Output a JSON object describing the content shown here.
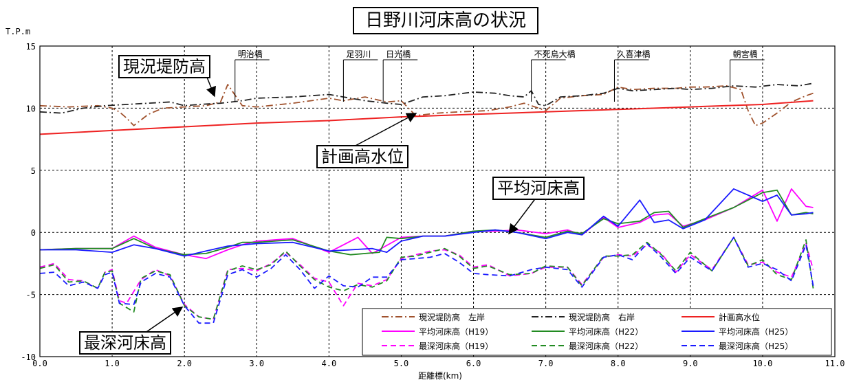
{
  "chart_data": {
    "type": "line",
    "title": "日野川河床高の状況",
    "xlabel": "距離標(km)",
    "ylabel": "T.P.m",
    "xlim": [
      0,
      11
    ],
    "ylim": [
      -10,
      15
    ],
    "xticks": [
      "0.0",
      "1.0",
      "2.0",
      "3.0",
      "4.0",
      "5.0",
      "6.0",
      "7.0",
      "8.0",
      "9.0",
      "10.0",
      "11.0"
    ],
    "yticks": [
      "15",
      "10",
      "5",
      "0",
      "-5",
      "-10"
    ],
    "grid": true,
    "legend_position": "bottom-right",
    "bridges": [
      {
        "name": "明治橋",
        "x": 2.7
      },
      {
        "name": "足羽川",
        "x": 4.2
      },
      {
        "name": "日光橋",
        "x": 4.75
      },
      {
        "name": "不死鳥大橋",
        "x": 6.8
      },
      {
        "name": "久喜津橋",
        "x": 7.95
      },
      {
        "name": "朝宮橋",
        "x": 9.55
      }
    ],
    "annotations": [
      {
        "text": "現況堤防高"
      },
      {
        "text": "計画高水位"
      },
      {
        "text": "平均河床高"
      },
      {
        "text": "最深河床高"
      }
    ],
    "series": [
      {
        "name": "現況堤防高　左岸",
        "color": "#a0522d",
        "dash": "dashdot",
        "x": [
          0,
          0.4,
          0.8,
          1.0,
          1.1,
          1.2,
          1.3,
          1.5,
          1.7,
          2.0,
          2.3,
          2.5,
          2.6,
          2.8,
          3.0,
          3.5,
          4.0,
          4.2,
          4.5,
          4.8,
          5.0,
          5.2,
          5.5,
          5.8,
          6.2,
          6.5,
          6.7,
          7.0,
          7.2,
          7.5,
          7.8,
          8.0,
          8.2,
          8.5,
          8.8,
          9.0,
          9.2,
          9.5,
          9.7,
          9.8,
          9.9,
          10.0,
          10.2,
          10.4,
          10.6,
          10.7
        ],
        "y": [
          10.2,
          10.1,
          10.2,
          10.0,
          9.7,
          9.2,
          8.6,
          9.5,
          10.0,
          10.1,
          10.2,
          10.5,
          11.9,
          10.2,
          10.1,
          10.4,
          10.8,
          10.6,
          10.9,
          10.5,
          10.6,
          9.4,
          9.6,
          9.7,
          9.8,
          10.1,
          10.4,
          9.8,
          10.8,
          11.0,
          11.1,
          11.7,
          11.5,
          11.6,
          11.6,
          11.7,
          11.7,
          11.8,
          11.5,
          9.8,
          8.6,
          8.8,
          9.6,
          10.5,
          11.0,
          11.2
        ]
      },
      {
        "name": "現況堤防高　右岸",
        "color": "#222222",
        "dash": "dashdot",
        "x": [
          0,
          0.3,
          0.6,
          0.9,
          1.2,
          1.5,
          1.8,
          2.0,
          2.2,
          2.5,
          2.8,
          3.0,
          3.5,
          4.0,
          4.2,
          4.5,
          4.8,
          5.0,
          5.3,
          5.6,
          6.0,
          6.3,
          6.5,
          6.7,
          6.8,
          6.9,
          7.0,
          7.2,
          7.5,
          7.8,
          8.0,
          8.2,
          8.5,
          8.8,
          9.0,
          9.3,
          9.6,
          9.9,
          10.2,
          10.5,
          10.7
        ],
        "y": [
          9.7,
          9.6,
          10.0,
          10.2,
          10.3,
          10.4,
          10.5,
          10.2,
          10.3,
          10.4,
          10.6,
          10.8,
          10.9,
          11.1,
          10.9,
          10.6,
          10.4,
          10.3,
          10.9,
          11.0,
          11.3,
          11.2,
          11.0,
          10.9,
          11.4,
          10.3,
          10.2,
          10.9,
          11.0,
          11.2,
          11.6,
          11.4,
          11.5,
          11.6,
          11.5,
          11.6,
          11.8,
          11.7,
          11.9,
          11.8,
          12.0
        ]
      },
      {
        "name": "計画高水位",
        "color": "#ee2222",
        "dash": "solid",
        "x": [
          0,
          1,
          2,
          3,
          4,
          5,
          6,
          7,
          8,
          9,
          10,
          10.7
        ],
        "y": [
          7.9,
          8.2,
          8.5,
          8.8,
          9.0,
          9.3,
          9.5,
          9.7,
          9.9,
          10.1,
          10.3,
          10.6
        ]
      },
      {
        "name": "平均河床高（H19）",
        "color": "#ff00ff",
        "dash": "solid",
        "x": [
          0,
          0.5,
          1.0,
          1.3,
          1.6,
          2.0,
          2.3,
          2.6,
          2.8,
          3.0,
          3.5,
          4.0,
          4.2,
          4.4,
          4.6,
          5.0,
          5.3,
          5.6,
          6.0,
          6.3,
          6.6,
          7.0,
          7.3,
          7.5,
          7.8,
          8.0,
          8.3,
          8.5,
          8.7,
          8.9,
          9.2,
          9.6,
          10.0,
          10.2,
          10.4,
          10.6,
          10.7
        ],
        "y": [
          -1.4,
          -1.3,
          -1.3,
          -0.3,
          -1.2,
          -1.8,
          -2.1,
          -1.4,
          -1.0,
          -0.7,
          -0.5,
          -1.6,
          -1.0,
          -0.4,
          -1.7,
          -0.4,
          -0.3,
          -0.3,
          0.1,
          0.1,
          0.2,
          -0.1,
          0.2,
          -0.2,
          1.2,
          0.4,
          0.8,
          1.4,
          1.5,
          0.5,
          1.0,
          2.0,
          3.4,
          0.9,
          3.5,
          2.1,
          2.0
        ]
      },
      {
        "name": "平均河床高（H22）",
        "color": "#228b22",
        "dash": "solid",
        "x": [
          0,
          0.5,
          1.0,
          1.3,
          1.6,
          2.0,
          2.3,
          2.6,
          2.8,
          3.0,
          3.5,
          4.0,
          4.3,
          4.7,
          4.8,
          5.0,
          5.3,
          5.6,
          6.0,
          6.3,
          6.6,
          7.0,
          7.3,
          7.5,
          7.8,
          8.0,
          8.3,
          8.5,
          8.7,
          8.9,
          9.2,
          9.6,
          10.0,
          10.2,
          10.4,
          10.6,
          10.7
        ],
        "y": [
          -1.4,
          -1.3,
          -1.3,
          -0.5,
          -1.3,
          -1.8,
          -1.7,
          -1.2,
          -0.8,
          -0.8,
          -0.6,
          -1.5,
          -1.8,
          -1.6,
          -0.4,
          -0.5,
          -0.3,
          -0.3,
          0.1,
          0.2,
          0.0,
          -0.4,
          0.1,
          -0.1,
          1.1,
          0.7,
          0.9,
          1.6,
          1.7,
          0.4,
          1.1,
          2.0,
          3.2,
          3.4,
          1.4,
          1.6,
          1.5
        ]
      },
      {
        "name": "平均河床高（H25）",
        "color": "#1a1aff",
        "dash": "solid",
        "x": [
          0,
          0.5,
          1.0,
          1.3,
          1.6,
          2.0,
          2.3,
          2.6,
          2.8,
          3.0,
          3.5,
          4.0,
          4.3,
          4.6,
          4.8,
          5.0,
          5.3,
          5.6,
          6.0,
          6.3,
          6.6,
          7.0,
          7.3,
          7.5,
          7.8,
          8.0,
          8.3,
          8.5,
          8.7,
          8.9,
          9.2,
          9.6,
          10.0,
          10.2,
          10.4,
          10.6,
          10.7
        ],
        "y": [
          -1.4,
          -1.4,
          -1.6,
          -1.0,
          -1.3,
          -1.9,
          -1.5,
          -1.1,
          -1.0,
          -0.9,
          -0.8,
          -1.5,
          -1.4,
          -1.3,
          -1.6,
          -0.7,
          -0.3,
          -0.3,
          0.0,
          0.2,
          0.0,
          -0.5,
          0.0,
          -0.2,
          1.3,
          0.5,
          2.6,
          0.8,
          1.0,
          0.3,
          1.0,
          3.5,
          2.5,
          3.0,
          1.4,
          1.5,
          1.6
        ]
      },
      {
        "name": "最深河床高（H19）",
        "color": "#ff00ff",
        "dash": "dashed",
        "x": [
          0,
          0.2,
          0.4,
          0.6,
          0.8,
          0.9,
          1.0,
          1.1,
          1.2,
          1.4,
          1.6,
          1.8,
          2.0,
          2.2,
          2.4,
          2.6,
          2.8,
          3.0,
          3.2,
          3.4,
          3.6,
          3.8,
          4.0,
          4.2,
          4.4,
          4.6,
          4.8,
          5.0,
          5.2,
          5.4,
          5.6,
          5.8,
          6.0,
          6.2,
          6.5,
          6.8,
          7.0,
          7.3,
          7.5,
          7.8,
          8.0,
          8.2,
          8.4,
          8.6,
          8.8,
          9.0,
          9.3,
          9.6,
          9.8,
          10.0,
          10.2,
          10.4,
          10.6,
          10.7
        ],
        "y": [
          -2.8,
          -2.5,
          -3.8,
          -3.9,
          -4.5,
          -3.2,
          -3.0,
          -5.5,
          -5.7,
          -3.8,
          -3.0,
          -3.5,
          -5.8,
          -6.8,
          -7.0,
          -3.0,
          -2.9,
          -3.1,
          -2.5,
          -1.6,
          -2.6,
          -3.7,
          -4.0,
          -5.9,
          -4.1,
          -4.3,
          -3.8,
          -2.1,
          -1.8,
          -1.5,
          -1.4,
          -1.8,
          -2.8,
          -2.6,
          -3.5,
          -3.3,
          -2.8,
          -2.8,
          -4.2,
          -2.0,
          -1.8,
          -1.9,
          -1.0,
          -1.7,
          -3.2,
          -1.8,
          -3.0,
          -0.4,
          -2.6,
          -2.4,
          -3.2,
          -3.6,
          -0.9,
          -3.0
        ]
      },
      {
        "name": "最深河床高（H22）",
        "color": "#228b22",
        "dash": "dashed",
        "x": [
          0,
          0.2,
          0.4,
          0.6,
          0.8,
          0.9,
          1.0,
          1.1,
          1.3,
          1.4,
          1.6,
          1.8,
          2.0,
          2.2,
          2.4,
          2.6,
          2.8,
          3.0,
          3.2,
          3.4,
          3.6,
          3.8,
          4.0,
          4.2,
          4.4,
          4.6,
          4.8,
          5.0,
          5.2,
          5.4,
          5.6,
          5.8,
          6.0,
          6.2,
          6.5,
          6.8,
          7.0,
          7.3,
          7.5,
          7.8,
          8.0,
          8.2,
          8.4,
          8.6,
          8.8,
          9.0,
          9.3,
          9.6,
          9.8,
          10.0,
          10.2,
          10.4,
          10.6,
          10.7
        ],
        "y": [
          -2.9,
          -2.6,
          -4.0,
          -3.9,
          -4.5,
          -3.2,
          -3.1,
          -5.7,
          -6.4,
          -3.7,
          -3.1,
          -3.4,
          -5.9,
          -6.8,
          -7.0,
          -3.1,
          -2.7,
          -3.0,
          -2.6,
          -1.5,
          -2.7,
          -3.8,
          -4.4,
          -4.7,
          -4.2,
          -4.4,
          -3.9,
          -2.0,
          -1.9,
          -1.6,
          -1.3,
          -1.9,
          -2.9,
          -2.7,
          -3.4,
          -3.3,
          -2.7,
          -2.8,
          -4.3,
          -1.9,
          -1.9,
          -1.8,
          -0.8,
          -1.8,
          -3.1,
          -1.6,
          -3.1,
          -0.4,
          -2.7,
          -2.2,
          -3.4,
          -3.8,
          -0.6,
          -4.5
        ]
      },
      {
        "name": "最深河床高（H25）",
        "color": "#1a1aff",
        "dash": "dashed",
        "x": [
          0,
          0.2,
          0.4,
          0.6,
          0.8,
          0.9,
          1.0,
          1.1,
          1.3,
          1.4,
          1.6,
          1.8,
          2.0,
          2.2,
          2.4,
          2.6,
          2.8,
          3.0,
          3.2,
          3.4,
          3.6,
          3.8,
          4.0,
          4.2,
          4.4,
          4.6,
          4.8,
          5.0,
          5.2,
          5.4,
          5.6,
          5.8,
          6.0,
          6.2,
          6.5,
          6.8,
          7.0,
          7.3,
          7.5,
          7.8,
          8.0,
          8.2,
          8.4,
          8.6,
          8.8,
          9.0,
          9.3,
          9.6,
          9.8,
          10.0,
          10.2,
          10.4,
          10.6,
          10.7
        ],
        "y": [
          -3.3,
          -3.2,
          -4.3,
          -4.0,
          -4.5,
          -3.4,
          -3.2,
          -5.7,
          -5.8,
          -4.0,
          -3.3,
          -3.6,
          -5.9,
          -7.3,
          -7.3,
          -3.4,
          -3.0,
          -3.6,
          -2.9,
          -1.8,
          -3.0,
          -4.5,
          -3.5,
          -4.3,
          -4.4,
          -3.6,
          -3.6,
          -2.2,
          -2.1,
          -2.0,
          -1.7,
          -2.4,
          -3.3,
          -3.4,
          -3.5,
          -3.0,
          -2.8,
          -3.0,
          -4.4,
          -2.0,
          -1.8,
          -2.2,
          -0.9,
          -2.0,
          -3.3,
          -2.0,
          -3.1,
          -0.4,
          -2.8,
          -2.5,
          -3.0,
          -3.9,
          -1.0,
          -4.3
        ]
      }
    ]
  }
}
